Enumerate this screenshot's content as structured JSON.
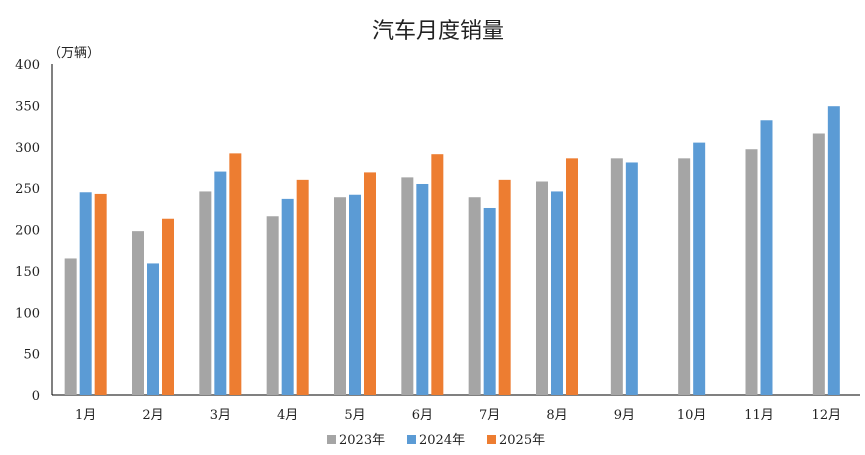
{
  "chart_data": {
    "type": "bar",
    "title": "汽车月度销量",
    "unit_label": "（万辆）",
    "categories": [
      "1月",
      "2月",
      "3月",
      "4月",
      "5月",
      "6月",
      "7月",
      "8月",
      "9月",
      "10月",
      "11月",
      "12月"
    ],
    "ylim": [
      0,
      400
    ],
    "yticks": [
      0,
      50,
      100,
      150,
      200,
      250,
      300,
      350,
      400
    ],
    "grid": false,
    "legend_position": "bottom",
    "series": [
      {
        "name": "2023年",
        "color": "#a5a5a5",
        "values": [
          165,
          198,
          246,
          216,
          239,
          263,
          239,
          258,
          286,
          286,
          297,
          316
        ]
      },
      {
        "name": "2024年",
        "color": "#5b9bd5",
        "values": [
          245,
          159,
          270,
          237,
          242,
          255,
          226,
          246,
          281,
          305,
          332,
          349
        ]
      },
      {
        "name": "2025年",
        "color": "#ed7d31",
        "values": [
          243,
          213,
          292,
          260,
          269,
          291,
          260,
          286,
          null,
          null,
          null,
          null
        ]
      }
    ]
  }
}
